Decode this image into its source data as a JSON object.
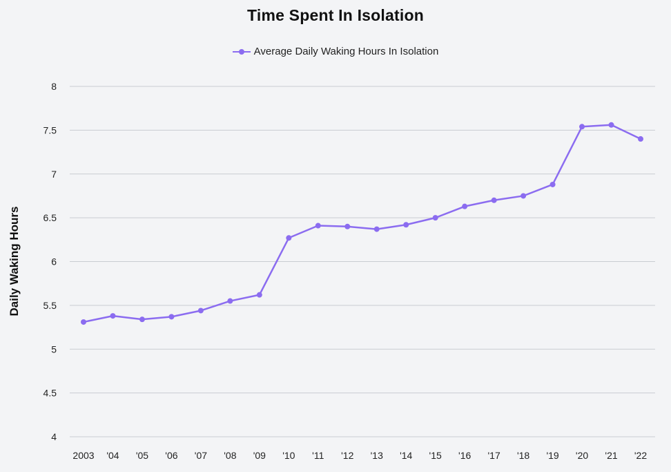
{
  "chart_data": {
    "type": "line",
    "title": "Time Spent In Isolation",
    "xlabel": "",
    "ylabel": "Daily Waking Hours",
    "categories": [
      "2003",
      "'04",
      "'05",
      "'06",
      "'07",
      "'08",
      "'09",
      "'10",
      "'11",
      "'12",
      "'13",
      "'14",
      "'15",
      "'16",
      "'17",
      "'18",
      "'19",
      "'20",
      "'21",
      "'22"
    ],
    "series": [
      {
        "name": "Average Daily Waking Hours In Isolation",
        "color": "#8b6cf0",
        "values": [
          5.31,
          5.38,
          5.34,
          5.37,
          5.44,
          5.55,
          5.62,
          6.27,
          6.41,
          6.4,
          6.37,
          6.42,
          6.5,
          6.63,
          6.7,
          6.75,
          6.88,
          7.54,
          7.56,
          7.4
        ]
      }
    ],
    "ylim": [
      4,
      8
    ],
    "yticks": [
      "4",
      "4.5",
      "5",
      "5.5",
      "6",
      "6.5",
      "7",
      "7.5",
      "8"
    ],
    "grid": true,
    "legend_position": "top-center"
  }
}
